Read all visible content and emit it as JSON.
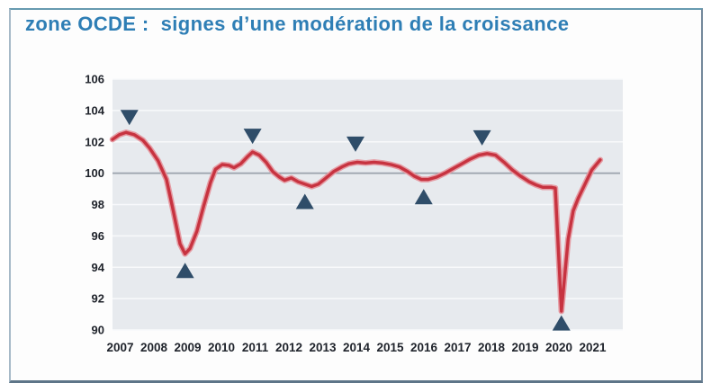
{
  "title": "zone OCDE :  signes d’une modération de la croissance",
  "colors": {
    "title_blue": "#2e7eb5",
    "line_red": "#c73340",
    "line_halo": "#e59ba3",
    "marker_slate": "#2f4d69",
    "plot_bg": "#e7eaee",
    "grid_white": "#f8f9fb",
    "baseline_gray": "#9aa2ab",
    "axis_text": "#20242c"
  },
  "chart_data": {
    "type": "line",
    "title": "zone OCDE : signes d’une modération de la croissance",
    "xlabel": "",
    "ylabel": "",
    "legend": false,
    "grid": true,
    "xlim": [
      2007,
      2022.12
    ],
    "ylim": [
      90,
      106
    ],
    "baseline": 100,
    "x_ticks": [
      2007,
      2008,
      2009,
      2010,
      2011,
      2012,
      2013,
      2014,
      2015,
      2016,
      2017,
      2018,
      2019,
      2020,
      2021
    ],
    "y_ticks": [
      106,
      104,
      102,
      100,
      98,
      96,
      94,
      92,
      90
    ],
    "series": [
      {
        "name": "series-1",
        "points": [
          [
            2007.0,
            102.15
          ],
          [
            2007.2,
            102.45
          ],
          [
            2007.4,
            102.6
          ],
          [
            2007.65,
            102.45
          ],
          [
            2007.9,
            102.1
          ],
          [
            2008.1,
            101.6
          ],
          [
            2008.35,
            100.8
          ],
          [
            2008.6,
            99.6
          ],
          [
            2008.8,
            97.6
          ],
          [
            2009.0,
            95.5
          ],
          [
            2009.15,
            94.85
          ],
          [
            2009.3,
            95.2
          ],
          [
            2009.5,
            96.3
          ],
          [
            2009.7,
            97.9
          ],
          [
            2009.9,
            99.4
          ],
          [
            2010.05,
            100.25
          ],
          [
            2010.25,
            100.55
          ],
          [
            2010.45,
            100.5
          ],
          [
            2010.6,
            100.35
          ],
          [
            2010.8,
            100.6
          ],
          [
            2011.0,
            101.05
          ],
          [
            2011.15,
            101.35
          ],
          [
            2011.35,
            101.15
          ],
          [
            2011.55,
            100.7
          ],
          [
            2011.75,
            100.1
          ],
          [
            2011.95,
            99.75
          ],
          [
            2012.1,
            99.55
          ],
          [
            2012.3,
            99.7
          ],
          [
            2012.5,
            99.45
          ],
          [
            2012.7,
            99.3
          ],
          [
            2012.9,
            99.15
          ],
          [
            2013.1,
            99.3
          ],
          [
            2013.3,
            99.65
          ],
          [
            2013.55,
            100.1
          ],
          [
            2013.8,
            100.4
          ],
          [
            2014.0,
            100.6
          ],
          [
            2014.25,
            100.7
          ],
          [
            2014.5,
            100.65
          ],
          [
            2014.75,
            100.7
          ],
          [
            2015.0,
            100.65
          ],
          [
            2015.25,
            100.55
          ],
          [
            2015.5,
            100.4
          ],
          [
            2015.75,
            100.1
          ],
          [
            2015.95,
            99.8
          ],
          [
            2016.15,
            99.6
          ],
          [
            2016.35,
            99.6
          ],
          [
            2016.6,
            99.75
          ],
          [
            2016.85,
            100.0
          ],
          [
            2017.1,
            100.3
          ],
          [
            2017.35,
            100.6
          ],
          [
            2017.6,
            100.9
          ],
          [
            2017.85,
            101.15
          ],
          [
            2018.1,
            101.25
          ],
          [
            2018.35,
            101.15
          ],
          [
            2018.6,
            100.7
          ],
          [
            2018.85,
            100.2
          ],
          [
            2019.1,
            99.8
          ],
          [
            2019.35,
            99.45
          ],
          [
            2019.55,
            99.25
          ],
          [
            2019.75,
            99.1
          ],
          [
            2020.0,
            99.1
          ],
          [
            2020.12,
            99.05
          ],
          [
            2020.3,
            91.2
          ],
          [
            2020.5,
            95.8
          ],
          [
            2020.65,
            97.6
          ],
          [
            2020.8,
            98.4
          ],
          [
            2021.0,
            99.3
          ],
          [
            2021.2,
            100.2
          ],
          [
            2021.45,
            100.85
          ]
        ]
      }
    ],
    "markers": {
      "peaks_down": [
        [
          2007.5,
          103.55
        ],
        [
          2011.15,
          102.35
        ],
        [
          2014.2,
          101.85
        ],
        [
          2017.95,
          102.25
        ]
      ],
      "troughs_up": [
        [
          2009.15,
          93.8
        ],
        [
          2012.7,
          98.2
        ],
        [
          2016.22,
          98.5
        ],
        [
          2020.3,
          90.45
        ]
      ]
    }
  }
}
